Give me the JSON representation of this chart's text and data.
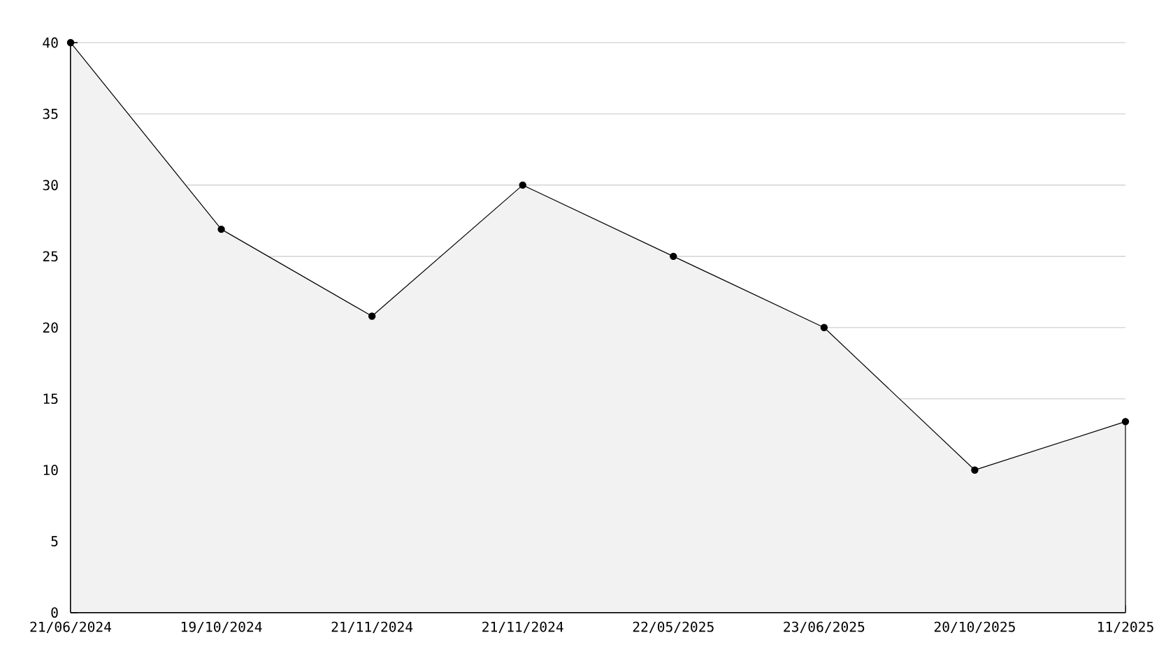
{
  "chart_data": {
    "type": "area",
    "categories": [
      "21/06/2024",
      "19/10/2024",
      "21/11/2024",
      "21/11/2024",
      "22/05/2025",
      "23/06/2025",
      "20/10/2025",
      "11/2025"
    ],
    "values": [
      40,
      26.9,
      20.8,
      30,
      25,
      20,
      10,
      13.4
    ],
    "color": "#f2f2f2",
    "ylim": [
      0,
      40
    ],
    "yticks": [
      0,
      5,
      10,
      15,
      20,
      25,
      30,
      35,
      40
    ],
    "grid": "y",
    "marker": "circle",
    "line_style": "solid"
  }
}
